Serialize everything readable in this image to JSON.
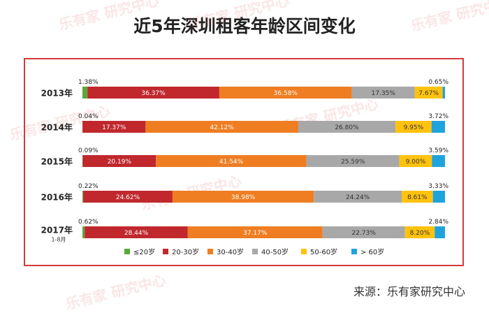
{
  "chart_data": {
    "type": "bar",
    "stacked": true,
    "orientation": "horizontal",
    "title": "近5年深圳租客年龄区间变化",
    "categories": [
      "2013年",
      "2014年",
      "2015年",
      "2016年",
      "2017年"
    ],
    "category_sublabels": [
      "",
      "",
      "",
      "",
      "1-8月"
    ],
    "series": [
      {
        "name": "≤20岁",
        "color": "#5aa83c",
        "values": [
          1.38,
          0.04,
          0.09,
          0.22,
          0.62
        ]
      },
      {
        "name": "20-30岁",
        "color": "#c0282d",
        "values": [
          36.37,
          17.37,
          20.19,
          24.62,
          28.44
        ]
      },
      {
        "name": "30-40岁",
        "color": "#ef7d22",
        "values": [
          36.58,
          42.12,
          41.54,
          38.98,
          37.17
        ]
      },
      {
        "name": "40-50岁",
        "color": "#a8a8a8",
        "values": [
          17.35,
          26.8,
          25.59,
          24.24,
          22.73
        ]
      },
      {
        "name": "50-60岁",
        "color": "#ffc20e",
        "values": [
          7.67,
          9.95,
          9.0,
          8.61,
          8.2
        ]
      },
      {
        "name": "> 60岁",
        "color": "#1fa3dd",
        "values": [
          0.65,
          3.72,
          3.59,
          3.33,
          2.84
        ]
      }
    ],
    "value_labels": [
      [
        "1.38%",
        "36.37%",
        "36.58%",
        "17.35%",
        "7.67%",
        "0.65%"
      ],
      [
        "0.04%",
        "17.37%",
        "42.12%",
        "26.80%",
        "9.95%",
        "3.72%"
      ],
      [
        "0.09%",
        "20.19%",
        "41.54%",
        "25.59%",
        "9.00%",
        "3.59%"
      ],
      [
        "0.22%",
        "24.62%",
        "38.98%",
        "24.24%",
        "8.61%",
        "3.33%"
      ],
      [
        "0.62%",
        "28.44%",
        "37.17%",
        "22.73%",
        "8.20%",
        "2.84%"
      ]
    ],
    "unit": "%",
    "legend_position": "bottom"
  },
  "source": "来源：乐有家研究中心",
  "watermark": {
    "brand": "乐有家",
    "sub": "研究中心"
  }
}
